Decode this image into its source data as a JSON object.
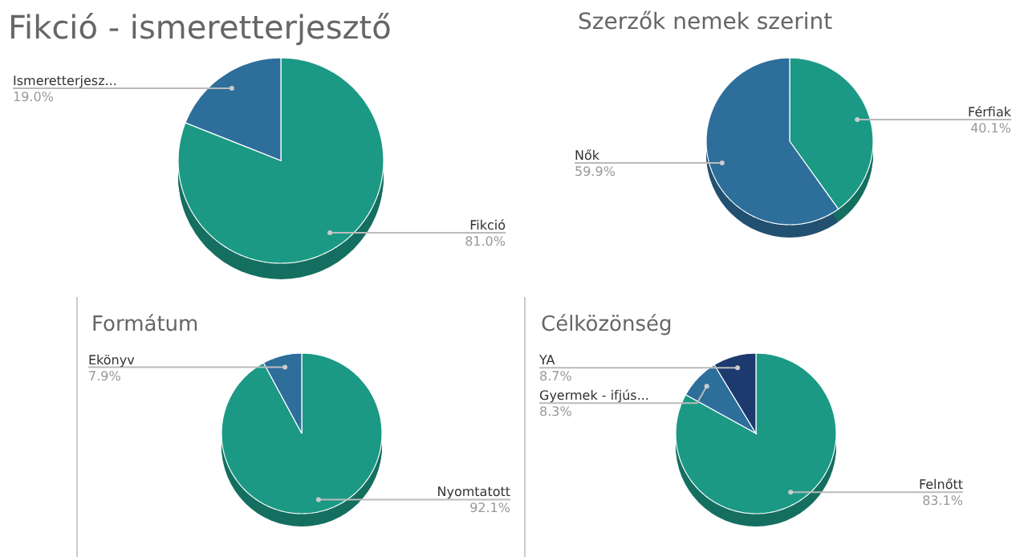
{
  "chart_data": [
    {
      "type": "pie",
      "title": "Fikció - ismeretterjesztő",
      "categories": [
        "Fikció",
        "Ismeretterjesz..."
      ],
      "values": [
        81.0,
        19.0
      ],
      "colors": [
        "#1b9985",
        "#2d6e9b"
      ],
      "value_labels": [
        "81.0%",
        "19.0%"
      ]
    },
    {
      "type": "pie",
      "title": "Szerzők nemek szerint",
      "categories": [
        "Férfiak",
        "Nők"
      ],
      "values": [
        40.1,
        59.9
      ],
      "colors": [
        "#1b9985",
        "#2d6e9b"
      ],
      "value_labels": [
        "40.1%",
        "59.9%"
      ]
    },
    {
      "type": "pie",
      "title": "Formátum",
      "categories": [
        "Nyomtatott",
        "Ekönyv"
      ],
      "values": [
        92.1,
        7.9
      ],
      "colors": [
        "#1b9985",
        "#2d6e9b"
      ],
      "value_labels": [
        "92.1%",
        "7.9%"
      ]
    },
    {
      "type": "pie",
      "title": "Célközönség",
      "categories": [
        "Felnőtt",
        "Gyermek - ifjús...",
        "YA"
      ],
      "values": [
        83.1,
        8.3,
        8.7
      ],
      "colors": [
        "#1b9985",
        "#2d6e9b",
        "#1c3a6e"
      ],
      "value_labels": [
        "83.1%",
        "8.3%",
        "8.7%"
      ]
    }
  ]
}
